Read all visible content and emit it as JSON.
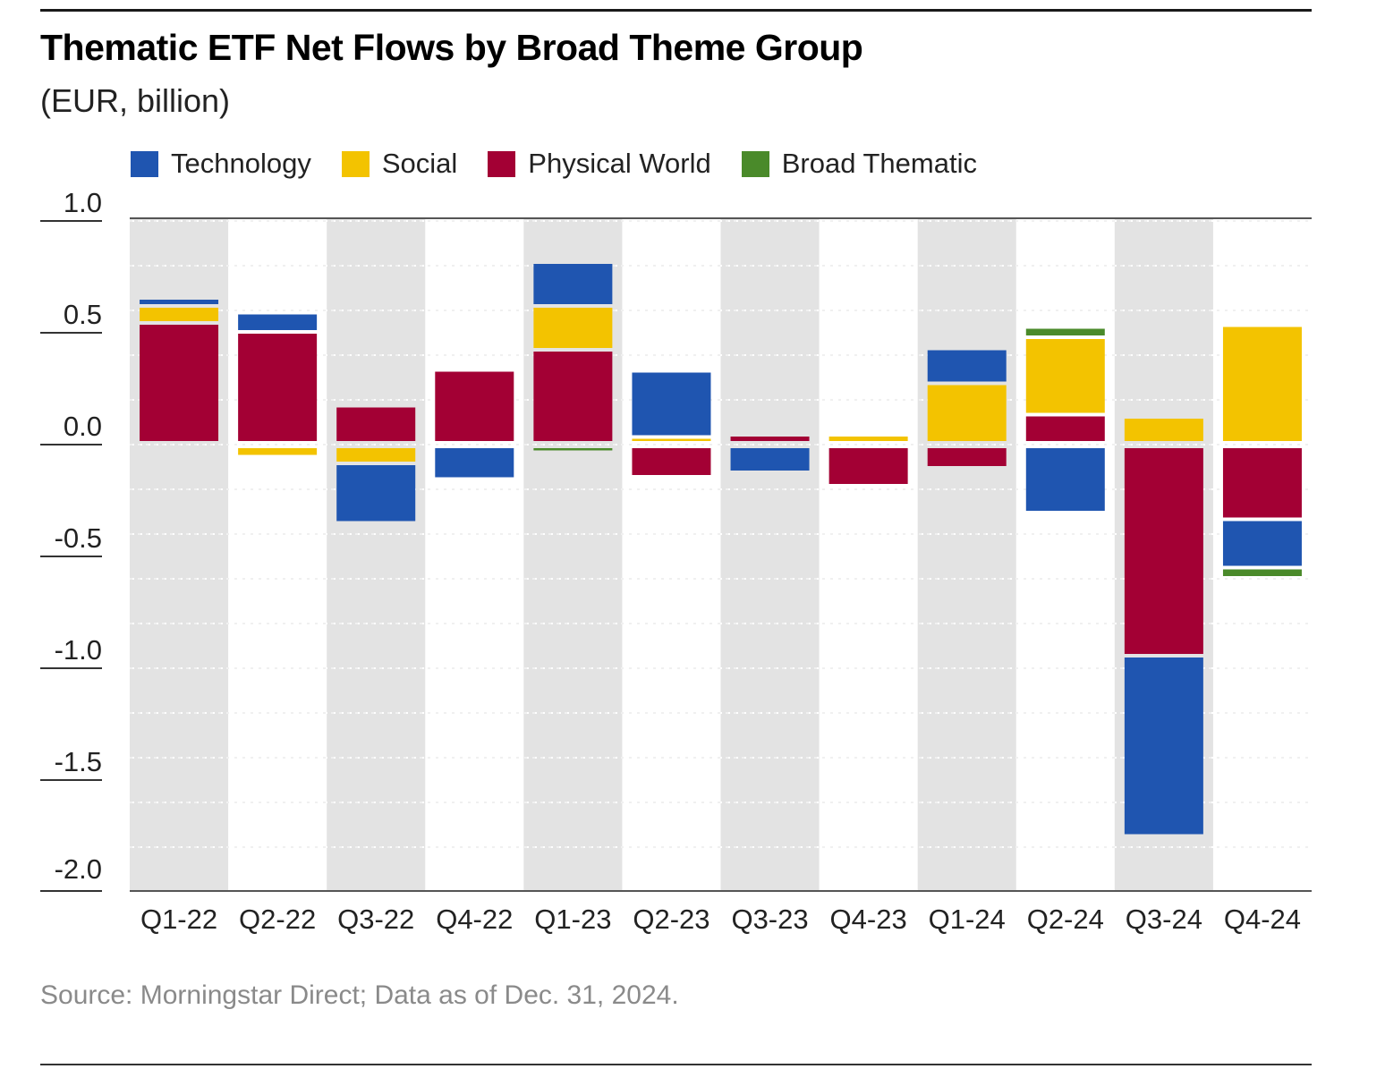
{
  "chart": {
    "title": "Thematic ETF Net Flows by Broad Theme Group",
    "subtitle": "(EUR, billion)",
    "source": "Source: Morningstar Direct; Data as of Dec. 31, 2024."
  },
  "legend": [
    {
      "label": "Technology",
      "color": "#1f55b0"
    },
    {
      "label": "Social",
      "color": "#f3c300"
    },
    {
      "label": "Physical World",
      "color": "#a30034"
    },
    {
      "label": "Broad Thematic",
      "color": "#4a8a2a"
    }
  ],
  "chart_data": {
    "type": "bar",
    "stacked": true,
    "title": "Thematic ETF Net Flows by Broad Theme Group",
    "subtitle": "(EUR, billion)",
    "categories": [
      "Q1-22",
      "Q2-22",
      "Q3-22",
      "Q4-22",
      "Q1-23",
      "Q2-23",
      "Q3-23",
      "Q4-23",
      "Q1-24",
      "Q2-24",
      "Q3-24",
      "Q4-24"
    ],
    "series": [
      {
        "name": "Physical World",
        "color": "#a30034",
        "values": [
          0.52,
          0.48,
          0.15,
          0.31,
          0.4,
          -0.12,
          0.02,
          -0.16,
          -0.08,
          0.11,
          -0.92,
          -0.31
        ]
      },
      {
        "name": "Social",
        "color": "#f3c300",
        "values": [
          0.06,
          -0.03,
          -0.06,
          0.0,
          0.18,
          0.01,
          0.0,
          0.02,
          0.25,
          0.33,
          0.1,
          0.51
        ]
      },
      {
        "name": "Technology",
        "color": "#1f55b0",
        "values": [
          0.02,
          0.07,
          -0.25,
          -0.13,
          0.18,
          0.28,
          -0.1,
          0.0,
          0.14,
          -0.28,
          -0.79,
          -0.2
        ]
      },
      {
        "name": "Broad Thematic",
        "color": "#4a8a2a",
        "values": [
          0.0,
          0.0,
          0.0,
          0.0,
          -0.01,
          0.0,
          0.0,
          0.0,
          0.0,
          0.03,
          0.0,
          -0.03
        ]
      }
    ],
    "stack_order": [
      "Physical World",
      "Social",
      "Technology",
      "Broad Thematic"
    ],
    "y_ticks": [
      "1.0",
      "0.5",
      "0.0",
      "-0.5",
      "-1.0",
      "-1.5",
      "-2.0"
    ],
    "ylim": [
      -2.0,
      1.0
    ],
    "grid": true,
    "legend_position": "top-left"
  }
}
